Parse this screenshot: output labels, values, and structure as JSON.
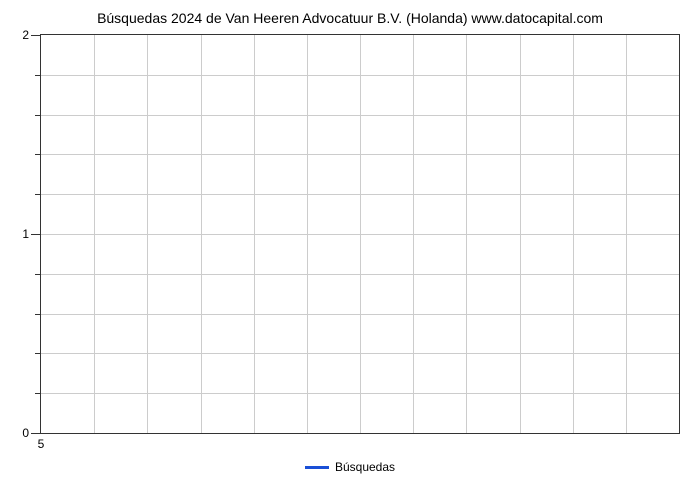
{
  "chart": {
    "type": "line",
    "title": "Búsquedas 2024 de Van Heeren Advocatuur B.V. (Holanda) www.datocapital.com",
    "title_fontsize": 14,
    "title_color": "#000000",
    "ylim": [
      0,
      2
    ],
    "y_major_ticks": [
      0,
      1,
      2
    ],
    "y_minor_count_between": 4,
    "xlim": [
      5,
      17
    ],
    "x_ticks": [
      5
    ],
    "x_minor_count": 12,
    "grid_color": "#cccccc",
    "axis_color": "#333333",
    "background_color": "#ffffff",
    "series": [
      {
        "name": "Búsquedas",
        "color": "#1a4fd6",
        "line_width": 3,
        "data_x": [],
        "data_y": []
      }
    ],
    "legend": {
      "position": "bottom-center",
      "label": "Búsquedas",
      "line_color": "#1a4fd6"
    },
    "tick_label_fontsize": 12,
    "legend_fontsize": 12
  }
}
